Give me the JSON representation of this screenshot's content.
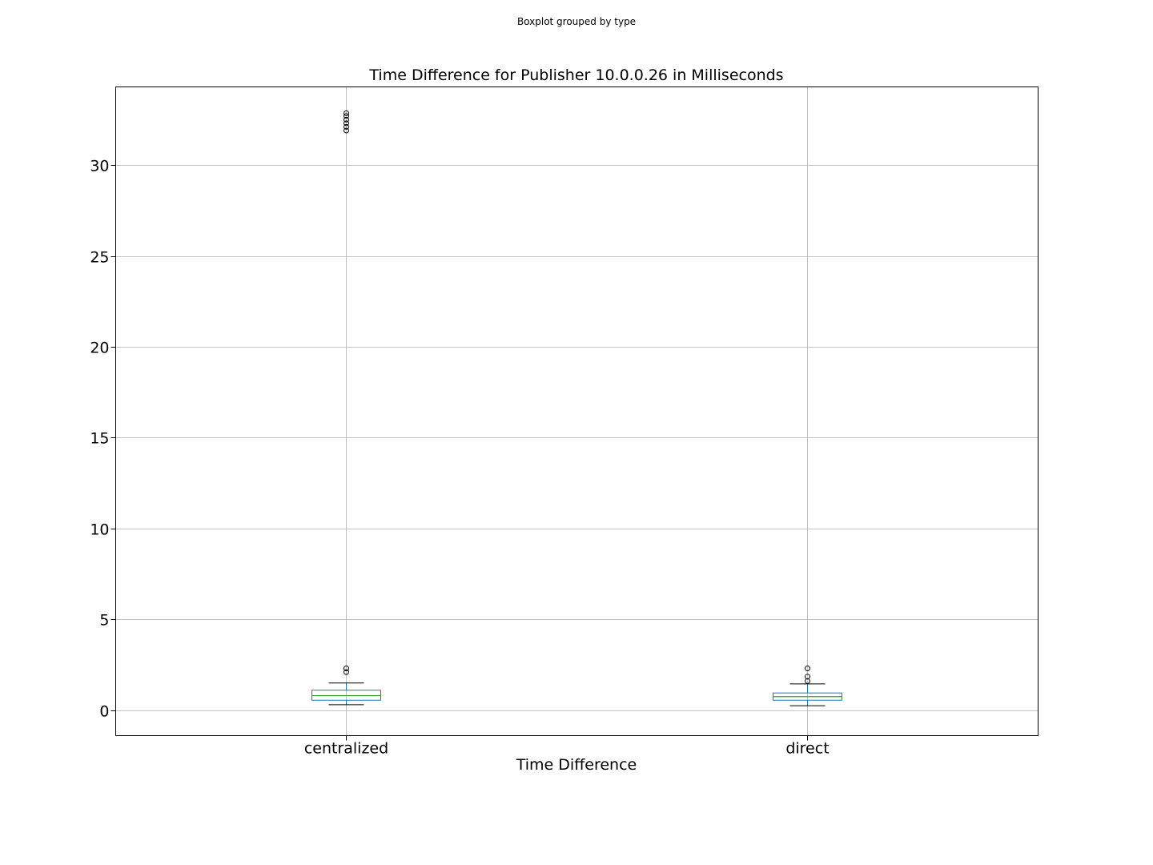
{
  "figure": {
    "suptitle": "Boxplot grouped by type"
  },
  "chart_data": {
    "type": "boxplot",
    "title": "Time Difference for Publisher 10.0.0.26 in Milliseconds",
    "xlabel": "Time Difference",
    "ylabel": "",
    "ylim": [
      -1.4,
      34.3
    ],
    "yticks": [
      0,
      5,
      10,
      15,
      20,
      25,
      30
    ],
    "grid": true,
    "categories": [
      "centralized",
      "direct"
    ],
    "boxes": [
      {
        "category": "centralized",
        "whisker_low": 0.3,
        "q1": 0.55,
        "median": 0.8,
        "q3": 1.1,
        "whisker_high": 1.5,
        "outliers": [
          2.1,
          2.3,
          31.9,
          32.1,
          32.3,
          32.5,
          32.7,
          32.85
        ]
      },
      {
        "category": "direct",
        "whisker_low": 0.25,
        "q1": 0.55,
        "median": 0.75,
        "q3": 0.95,
        "whisker_high": 1.45,
        "outliers": [
          1.6,
          1.85,
          2.3
        ]
      }
    ],
    "colors": {
      "box": "#1f77b4",
      "median": "#2ca02c",
      "whisker": "#000000",
      "grid": "#b0b0b0"
    }
  }
}
